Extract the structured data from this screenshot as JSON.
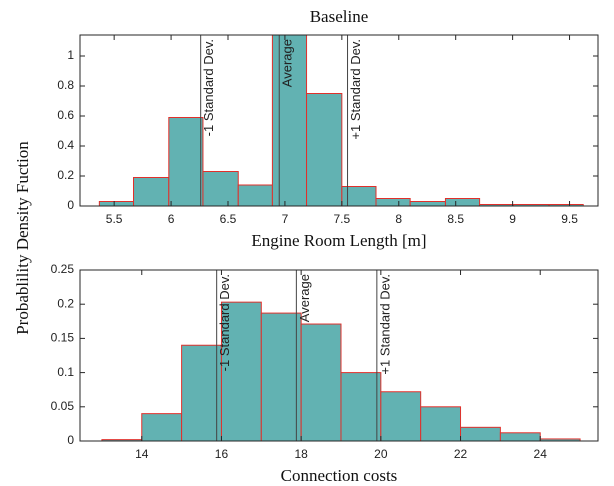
{
  "chart_data": [
    {
      "type": "histogram",
      "title": "Baseline",
      "xlabel": "Engine Room Length [m]",
      "ylabel": "Probablility Density Fuction",
      "bins": [
        5.37,
        5.67,
        5.98,
        6.28,
        6.59,
        6.89,
        7.19,
        7.5,
        7.8,
        8.1,
        8.41,
        8.71,
        9.01,
        9.32,
        9.62
      ],
      "values": [
        0.03,
        0.19,
        0.59,
        0.23,
        0.14,
        1.14,
        0.75,
        0.13,
        0.05,
        0.03,
        0.05,
        0.01,
        0.01,
        0.01
      ],
      "color": "#62b2b2",
      "edge_color": "#e0302b",
      "xlim": [
        5.2,
        9.75
      ],
      "xticks": [
        5.5,
        6,
        6.5,
        7,
        7.5,
        8,
        8.5,
        9,
        9.5
      ],
      "ylim": [
        0,
        1.14
      ],
      "yticks": [
        0,
        0.2,
        0.4,
        0.6,
        0.8,
        1
      ],
      "annotations": [
        {
          "x": 6.26,
          "text": "-1 Standard Dev."
        },
        {
          "x": 6.95,
          "text": "Average"
        },
        {
          "x": 7.55,
          "text": "+1 Standard Dev."
        }
      ]
    },
    {
      "type": "histogram",
      "xlabel": "Connection costs",
      "bins": [
        13,
        14,
        15,
        16,
        17,
        18,
        19,
        20,
        21,
        22,
        23,
        24,
        25
      ],
      "values": [
        0.002,
        0.04,
        0.14,
        0.203,
        0.187,
        0.171,
        0.1,
        0.072,
        0.05,
        0.02,
        0.012,
        0.003
      ],
      "color": "#62b2b2",
      "edge_color": "#e0302b",
      "xlim": [
        12.45,
        25.45
      ],
      "xticks": [
        14,
        16,
        18,
        20,
        22,
        24
      ],
      "ylim": [
        0,
        0.25
      ],
      "yticks": [
        0,
        0.05,
        0.1,
        0.15,
        0.2,
        0.25
      ],
      "annotations": [
        {
          "x": 15.88,
          "text": "-1 Standard Dev."
        },
        {
          "x": 17.88,
          "text": "Average"
        },
        {
          "x": 19.9,
          "text": "+1 Standard Dev."
        }
      ]
    }
  ]
}
